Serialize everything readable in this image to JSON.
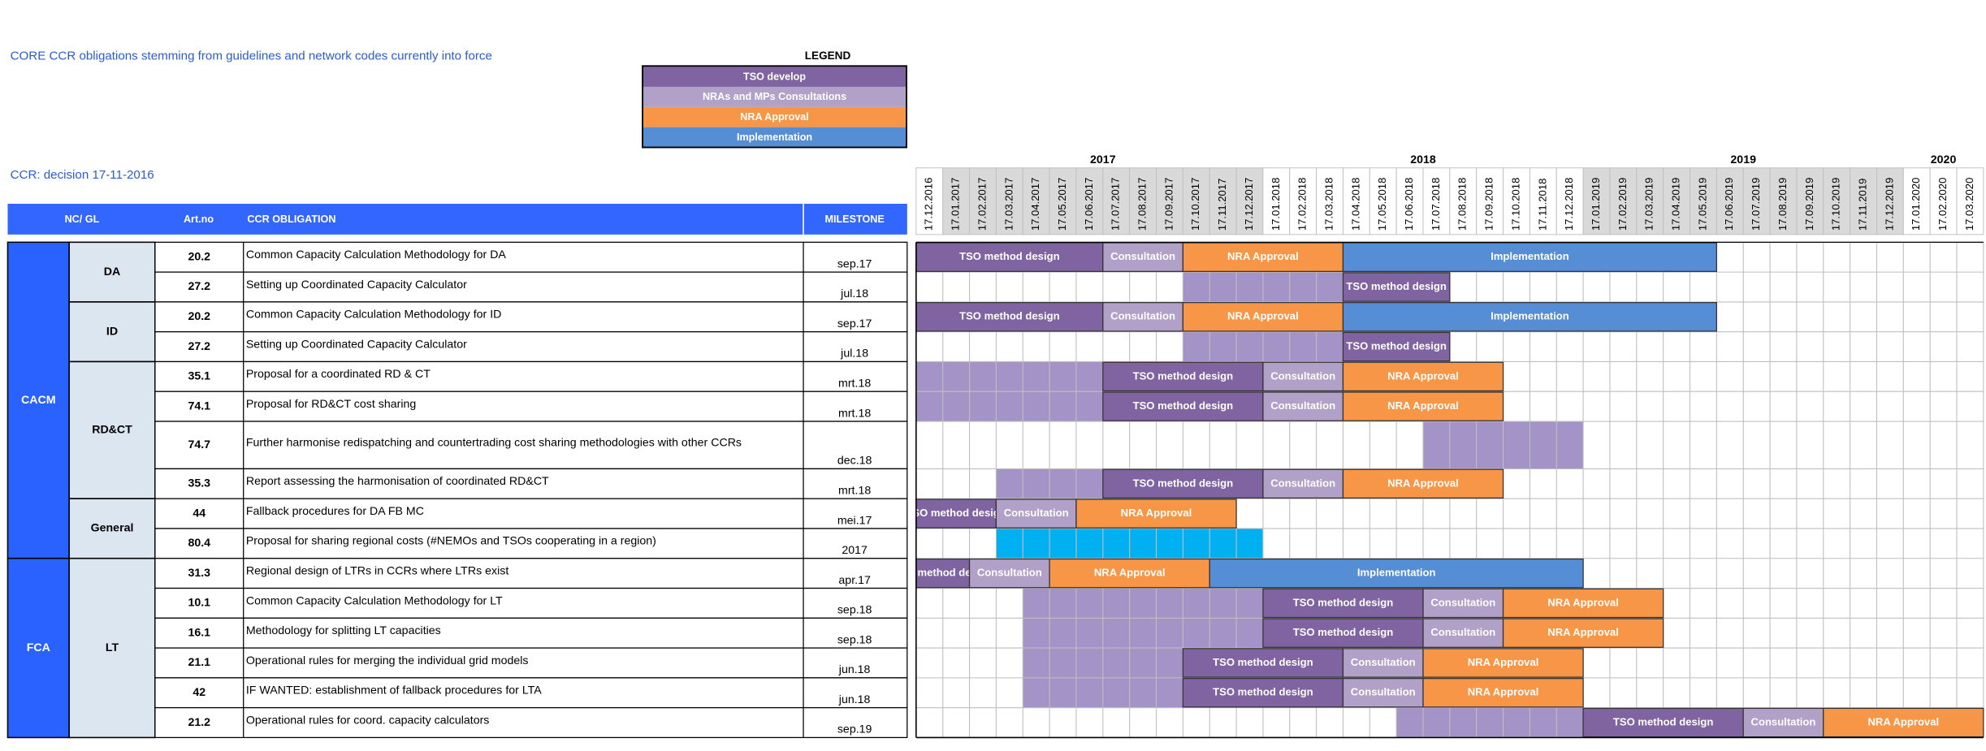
{
  "title": "CORE CCR obligations stemming from guidelines and network codes currently into force",
  "ccr_note": "CCR: decision 17-11-2016",
  "legend": {
    "title": "LEGEND",
    "items": [
      {
        "label": "TSO develop",
        "color": "#8064a2"
      },
      {
        "label": "NRAs and MPs  Consultations",
        "color": "#b1a0c7"
      },
      {
        "label": "NRA Approval",
        "color": "#f79646"
      },
      {
        "label": "Implementation",
        "color": "#558ed5"
      }
    ]
  },
  "table": {
    "headers": [
      "NC/ GL",
      "Art.no",
      "CCR OBLIGATION",
      "MILESTONE"
    ],
    "years": [
      "2017",
      "2018",
      "2019",
      "2020"
    ],
    "months": [
      "17.12.2016",
      "17.01.2017",
      "17.02.2017",
      "17.03.2017",
      "17.04.2017",
      "17.05.2017",
      "17.06.2017",
      "17.07.2017",
      "17.08.2017",
      "17.09.2017",
      "17.10.2017",
      "17.11.2017",
      "17.12.2017",
      "17.01.2018",
      "17.02.2018",
      "17.03.2018",
      "17.04.2018",
      "17.05.2018",
      "17.06.2018",
      "17.07.2018",
      "17.08.2018",
      "17.09.2018",
      "17.10.2018",
      "17.11.2018",
      "17.12.2018",
      "17.01.2019",
      "17.02.2019",
      "17.03.2019",
      "17.04.2019",
      "17.05.2019",
      "17.06.2019",
      "17.07.2019",
      "17.08.2019",
      "17.09.2019",
      "17.10.2019",
      "17.11.2019",
      "17.12.2019",
      "17.01.2020",
      "17.02.2020",
      "17.03.2020"
    ],
    "groups": [
      {
        "name": "CACM",
        "subgroups": [
          {
            "name": "DA",
            "rows": [
              {
                "art": "20.2",
                "obligation": "Common Capacity Calculation Methodology for DA",
                "milestone": "sep.17",
                "bars": [
                  {
                    "label": "TSO method design",
                    "color": "#8064a2",
                    "from": "17.12.2016",
                    "to": "17.06.2017"
                  },
                  {
                    "label": "Consultation",
                    "color": "#b1a0c7",
                    "from": "17.07.2017",
                    "to": "17.09.2017"
                  },
                  {
                    "label": "NRA Approval",
                    "color": "#f79646",
                    "from": "17.10.2017",
                    "to": "17.03.2018"
                  },
                  {
                    "label": "Implementation",
                    "color": "#558ed5",
                    "from": "17.04.2018",
                    "to": "17.05.2019"
                  }
                ]
              },
              {
                "art": "27.2",
                "obligation": "Setting up Coordinated Capacity Calculator",
                "milestone": "jul.18",
                "bars": [
                  {
                    "color": "#a393c7",
                    "from": "17.10.2017",
                    "to": "17.03.2018"
                  },
                  {
                    "label": "TSO method design",
                    "color": "#8064a2",
                    "from": "17.04.2018",
                    "to": "17.07.2018"
                  }
                ]
              }
            ]
          },
          {
            "name": "ID",
            "rows": [
              {
                "art": "20.2",
                "obligation": "Common Capacity Calculation Methodology for ID",
                "milestone": "sep.17",
                "bars": [
                  {
                    "label": "TSO method design",
                    "color": "#8064a2",
                    "from": "17.12.2016",
                    "to": "17.06.2017"
                  },
                  {
                    "label": "Consultation",
                    "color": "#b1a0c7",
                    "from": "17.07.2017",
                    "to": "17.09.2017"
                  },
                  {
                    "label": "NRA Approval",
                    "color": "#f79646",
                    "from": "17.10.2017",
                    "to": "17.03.2018"
                  },
                  {
                    "label": "Implementation",
                    "color": "#558ed5",
                    "from": "17.04.2018",
                    "to": "17.05.2019"
                  }
                ]
              },
              {
                "art": "27.2",
                "obligation": "Setting up Coordinated Capacity Calculator",
                "milestone": "jul.18",
                "bars": [
                  {
                    "color": "#a393c7",
                    "from": "17.10.2017",
                    "to": "17.03.2018"
                  },
                  {
                    "label": "TSO method design",
                    "color": "#8064a2",
                    "from": "17.04.2018",
                    "to": "17.07.2018"
                  }
                ]
              }
            ]
          },
          {
            "name": "RD&CT",
            "rows": [
              {
                "art": "35.1",
                "obligation": "Proposal for a coordinated RD & CT",
                "milestone": "mrt.18",
                "bars": [
                  {
                    "color": "#a393c7",
                    "from": "17.12.2016",
                    "to": "17.06.2017"
                  },
                  {
                    "label": "TSO method design",
                    "color": "#8064a2",
                    "from": "17.07.2017",
                    "to": "17.12.2017"
                  },
                  {
                    "label": "Consultation",
                    "color": "#b1a0c7",
                    "from": "17.01.2018",
                    "to": "17.03.2018"
                  },
                  {
                    "label": "NRA Approval",
                    "color": "#f79646",
                    "from": "17.04.2018",
                    "to": "17.09.2018"
                  }
                ]
              },
              {
                "art": "74.1",
                "obligation": "Proposal for RD&CT cost sharing",
                "milestone": "mrt.18",
                "bars": [
                  {
                    "color": "#a393c7",
                    "from": "17.12.2016",
                    "to": "17.06.2017"
                  },
                  {
                    "label": "TSO method design",
                    "color": "#8064a2",
                    "from": "17.07.2017",
                    "to": "17.12.2017"
                  },
                  {
                    "label": "Consultation",
                    "color": "#b1a0c7",
                    "from": "17.01.2018",
                    "to": "17.03.2018"
                  },
                  {
                    "label": "NRA Approval",
                    "color": "#f79646",
                    "from": "17.04.2018",
                    "to": "17.09.2018"
                  }
                ]
              },
              {
                "art": "74.7",
                "obligation": "Further harmonise redispatching and countertrading cost sharing methodologies with other CCRs",
                "milestone": "dec.18",
                "bars": [
                  {
                    "color": "#a393c7",
                    "from": "17.07.2018",
                    "to": "17.12.2018"
                  }
                ]
              },
              {
                "art": "35.3",
                "obligation": "Report assessing the harmonisation of coordinated RD&CT",
                "milestone": "mrt.18",
                "bars": [
                  {
                    "color": "#a393c7",
                    "from": "17.03.2017",
                    "to": "17.06.2017"
                  },
                  {
                    "label": "TSO method design",
                    "color": "#8064a2",
                    "from": "17.07.2017",
                    "to": "17.12.2017"
                  },
                  {
                    "label": "Consultation",
                    "color": "#b1a0c7",
                    "from": "17.01.2018",
                    "to": "17.03.2018"
                  },
                  {
                    "label": "NRA Approval",
                    "color": "#f79646",
                    "from": "17.04.2018",
                    "to": "17.09.2018"
                  }
                ]
              }
            ]
          },
          {
            "name": "General",
            "rows": [
              {
                "art": "44",
                "obligation": "Fallback procedures for DA FB MC",
                "milestone": "mei.17",
                "bars": [
                  {
                    "label": "TSO method design",
                    "color": "#8064a2",
                    "from": "17.12.2016",
                    "to": "17.02.2017"
                  },
                  {
                    "label": "Consultation",
                    "color": "#b1a0c7",
                    "from": "17.03.2017",
                    "to": "17.05.2017"
                  },
                  {
                    "label": "NRA Approval",
                    "color": "#f79646",
                    "from": "17.06.2017",
                    "to": "17.11.2017"
                  }
                ]
              },
              {
                "art": "80.4",
                "obligation": "Proposal for sharing regional costs (#NEMOs and TSOs cooperating in a region)",
                "milestone": "2017",
                "bars": [
                  {
                    "color": "#00b0f0",
                    "from": "17.03.2017",
                    "to": "17.12.2017"
                  }
                ]
              }
            ]
          }
        ]
      },
      {
        "name": "FCA",
        "subgroups": [
          {
            "name": "LT",
            "rows": [
              {
                "art": "31.3",
                "obligation": "Regional design of LTRs in CCRs where LTRs exist",
                "milestone": "apr.17",
                "bars": [
                  {
                    "label": "TSO method design",
                    "color": "#8064a2",
                    "from": "17.12.2016",
                    "to": "17.01.2017"
                  },
                  {
                    "label": "Consultation",
                    "color": "#b1a0c7",
                    "from": "17.02.2017",
                    "to": "17.04.2017"
                  },
                  {
                    "label": "NRA Approval",
                    "color": "#f79646",
                    "from": "17.05.2017",
                    "to": "17.10.2017"
                  },
                  {
                    "label": "Implementation",
                    "color": "#558ed5",
                    "from": "17.11.2017",
                    "to": "17.12.2018"
                  }
                ]
              },
              {
                "art": "10.1",
                "obligation": "Common Capacity Calculation Methodology for LT",
                "milestone": "sep.18",
                "bars": [
                  {
                    "color": "#a393c7",
                    "from": "17.04.2017",
                    "to": "17.12.2017"
                  },
                  {
                    "label": "TSO method design",
                    "color": "#8064a2",
                    "from": "17.01.2018",
                    "to": "17.06.2018"
                  },
                  {
                    "label": "Consultation",
                    "color": "#b1a0c7",
                    "from": "17.07.2018",
                    "to": "17.09.2018"
                  },
                  {
                    "label": "NRA Approval",
                    "color": "#f79646",
                    "from": "17.10.2018",
                    "to": "17.03.2019"
                  }
                ]
              },
              {
                "art": "16.1",
                "obligation": "Methodology for splitting LT capacities",
                "milestone": "sep.18",
                "bars": [
                  {
                    "color": "#a393c7",
                    "from": "17.04.2017",
                    "to": "17.12.2017"
                  },
                  {
                    "label": "TSO method design",
                    "color": "#8064a2",
                    "from": "17.01.2018",
                    "to": "17.06.2018"
                  },
                  {
                    "label": "Consultation",
                    "color": "#b1a0c7",
                    "from": "17.07.2018",
                    "to": "17.09.2018"
                  },
                  {
                    "label": "NRA Approval",
                    "color": "#f79646",
                    "from": "17.10.2018",
                    "to": "17.03.2019"
                  }
                ]
              },
              {
                "art": "21.1",
                "obligation": "Operational rules for merging the individual grid models",
                "milestone": "jun.18",
                "bars": [
                  {
                    "color": "#a393c7",
                    "from": "17.04.2017",
                    "to": "17.09.2017"
                  },
                  {
                    "label": "TSO method design",
                    "color": "#8064a2",
                    "from": "17.10.2017",
                    "to": "17.03.2018"
                  },
                  {
                    "label": "Consultation",
                    "color": "#b1a0c7",
                    "from": "17.04.2018",
                    "to": "17.06.2018"
                  },
                  {
                    "label": "NRA Approval",
                    "color": "#f79646",
                    "from": "17.07.2018",
                    "to": "17.12.2018"
                  }
                ]
              },
              {
                "art": "42",
                "obligation": "IF WANTED: establishment of fallback procedures for LTA",
                "milestone": "jun.18",
                "bars": [
                  {
                    "color": "#a393c7",
                    "from": "17.04.2017",
                    "to": "17.09.2017"
                  },
                  {
                    "label": "TSO method design",
                    "color": "#8064a2",
                    "from": "17.10.2017",
                    "to": "17.03.2018"
                  },
                  {
                    "label": "Consultation",
                    "color": "#b1a0c7",
                    "from": "17.04.2018",
                    "to": "17.06.2018"
                  },
                  {
                    "label": "NRA Approval",
                    "color": "#f79646",
                    "from": "17.07.2018",
                    "to": "17.12.2018"
                  }
                ]
              },
              {
                "art": "21.2",
                "obligation": "Operational rules for coord. capacity calculators",
                "milestone": "sep.19",
                "bars": [
                  {
                    "color": "#a393c7",
                    "from": "17.06.2018",
                    "to": "17.12.2018"
                  },
                  {
                    "label": "TSO method design",
                    "color": "#8064a2",
                    "from": "17.01.2019",
                    "to": "17.06.2019"
                  },
                  {
                    "label": "Consultation",
                    "color": "#b1a0c7",
                    "from": "17.07.2019",
                    "to": "17.09.2019"
                  },
                  {
                    "label": "NRA Approval",
                    "color": "#f79646",
                    "from": "17.10.2019",
                    "to": "17.03.2020"
                  }
                ]
              }
            ]
          }
        ]
      }
    ]
  }
}
